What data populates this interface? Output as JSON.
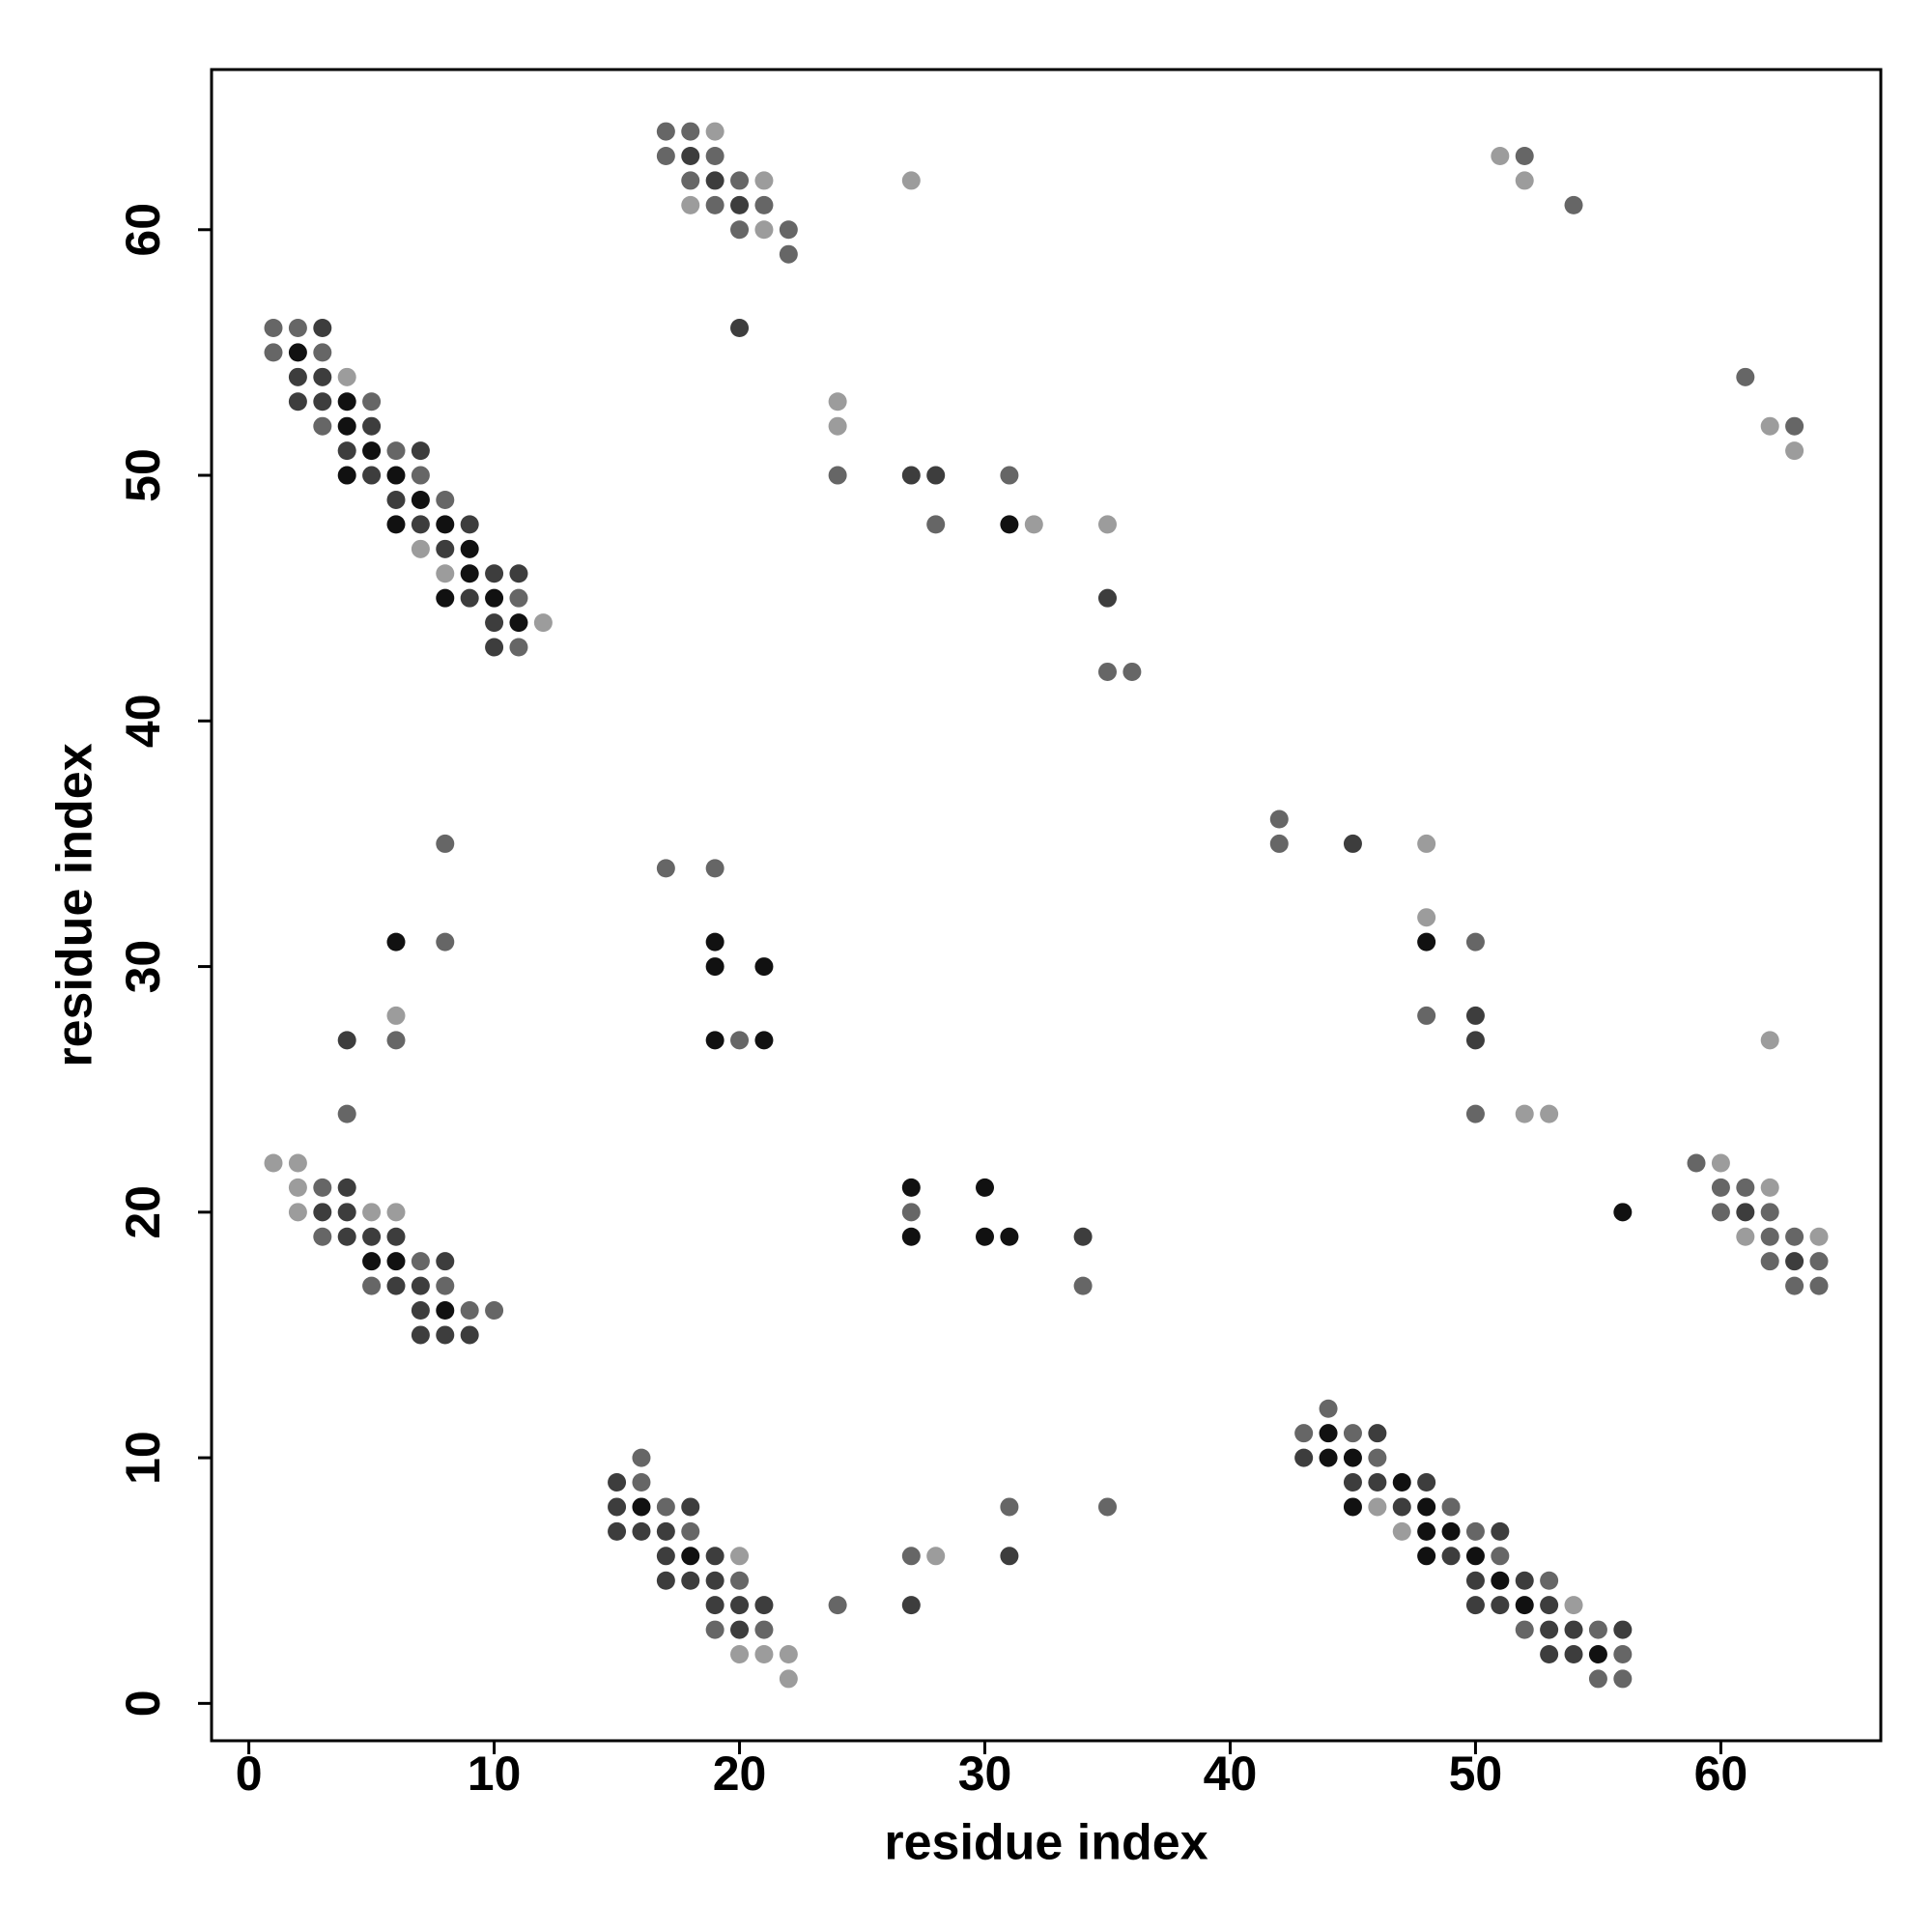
{
  "chart_data": {
    "type": "scatter",
    "xlabel": "residue index",
    "ylabel": "residue index",
    "xlim": [
      -1.52,
      66.52
    ],
    "ylim": [
      -1.52,
      66.52
    ],
    "xticks": [
      0,
      10,
      20,
      30,
      40,
      50,
      60
    ],
    "yticks": [
      0,
      10,
      20,
      30,
      40,
      50,
      60
    ],
    "series": [
      {
        "color": "#111111",
        "x": [
          2,
          4,
          4,
          5,
          4,
          6,
          7,
          6,
          8,
          9,
          9,
          8,
          10,
          11,
          31,
          6,
          19,
          48,
          19,
          21,
          19,
          21,
          27,
          30,
          56,
          27,
          30,
          31,
          5,
          6,
          8,
          16,
          18,
          44,
          44,
          45,
          47,
          45,
          48,
          48,
          49,
          48,
          50,
          51,
          52,
          55
        ],
        "values": [
          55,
          53,
          52,
          51,
          50,
          50,
          49,
          48,
          48,
          47,
          46,
          45,
          45,
          44,
          48,
          31,
          31,
          31,
          30,
          30,
          27,
          27,
          21,
          21,
          20,
          19,
          19,
          19,
          18,
          18,
          16,
          8,
          6,
          11,
          10,
          10,
          9,
          8,
          8,
          7,
          7,
          6,
          6,
          5,
          4,
          2
        ]
      },
      {
        "color": "#3d3d3d",
        "x": [
          3,
          2,
          3,
          2,
          3,
          5,
          4,
          7,
          5,
          6,
          7,
          9,
          8,
          10,
          11,
          9,
          10,
          10,
          18,
          19,
          20,
          20,
          27,
          28,
          35,
          45,
          50,
          4,
          50,
          4,
          3,
          4,
          61,
          4,
          5,
          6,
          34,
          8,
          63,
          6,
          7,
          7,
          7,
          8,
          9,
          15,
          15,
          18,
          15,
          16,
          17,
          17,
          19,
          31,
          17,
          18,
          19,
          19,
          20,
          21,
          27,
          20,
          46,
          43,
          45,
          46,
          48,
          47,
          51,
          49,
          50,
          52,
          50,
          51,
          53,
          53,
          54,
          56,
          53,
          54
        ],
        "values": [
          56,
          54,
          54,
          53,
          53,
          52,
          51,
          51,
          50,
          49,
          48,
          48,
          47,
          46,
          46,
          45,
          44,
          43,
          63,
          62,
          61,
          56,
          50,
          50,
          45,
          35,
          28,
          27,
          27,
          21,
          20,
          20,
          20,
          19,
          19,
          19,
          19,
          18,
          18,
          17,
          17,
          16,
          15,
          15,
          15,
          9,
          8,
          8,
          7,
          7,
          7,
          6,
          6,
          6,
          5,
          5,
          5,
          4,
          4,
          4,
          4,
          3,
          11,
          10,
          9,
          9,
          9,
          8,
          7,
          6,
          5,
          5,
          4,
          4,
          4,
          3,
          3,
          3,
          2,
          2
        ]
      },
      {
        "color": "#666666",
        "x": [
          1,
          2,
          1,
          3,
          5,
          3,
          6,
          7,
          8,
          11,
          11,
          17,
          18,
          17,
          19,
          18,
          20,
          19,
          21,
          20,
          22,
          22,
          52,
          54,
          61,
          63,
          24,
          31,
          28,
          35,
          36,
          42,
          42,
          8,
          17,
          19,
          8,
          50,
          48,
          6,
          20,
          4,
          50,
          59,
          3,
          60,
          61,
          27,
          60,
          62,
          3,
          62,
          63,
          7,
          62,
          64,
          5,
          8,
          34,
          63,
          64,
          9,
          10,
          16,
          16,
          17,
          31,
          35,
          18,
          27,
          20,
          24,
          19,
          21,
          44,
          43,
          45,
          46,
          49,
          50,
          51,
          53,
          52,
          55,
          56,
          55,
          56
        ],
        "values": [
          56,
          56,
          55,
          55,
          53,
          52,
          51,
          50,
          49,
          45,
          43,
          64,
          64,
          63,
          63,
          62,
          62,
          61,
          61,
          60,
          60,
          59,
          63,
          61,
          54,
          52,
          50,
          50,
          48,
          42,
          42,
          36,
          35,
          35,
          34,
          34,
          31,
          31,
          28,
          27,
          27,
          24,
          24,
          22,
          21,
          21,
          21,
          20,
          20,
          20,
          19,
          19,
          19,
          18,
          18,
          18,
          17,
          17,
          17,
          17,
          17,
          16,
          16,
          10,
          9,
          8,
          8,
          8,
          7,
          6,
          5,
          4,
          3,
          3,
          12,
          11,
          11,
          10,
          8,
          7,
          6,
          5,
          3,
          3,
          2,
          1,
          1
        ]
      },
      {
        "color": "#9c9c9c",
        "x": [
          4,
          7,
          8,
          12,
          19,
          21,
          27,
          18,
          21,
          51,
          52,
          62,
          63,
          24,
          24,
          32,
          35,
          48,
          48,
          6,
          62,
          52,
          53,
          1,
          2,
          60,
          2,
          62,
          2,
          5,
          6,
          61,
          64,
          20,
          28,
          20,
          21,
          22,
          22,
          46,
          47,
          54
        ],
        "values": [
          54,
          47,
          46,
          44,
          64,
          62,
          62,
          61,
          60,
          63,
          62,
          52,
          51,
          53,
          52,
          48,
          48,
          35,
          32,
          28,
          27,
          24,
          24,
          22,
          22,
          22,
          21,
          21,
          20,
          20,
          20,
          19,
          19,
          6,
          6,
          2,
          2,
          2,
          1,
          8,
          7,
          4
        ]
      }
    ]
  }
}
